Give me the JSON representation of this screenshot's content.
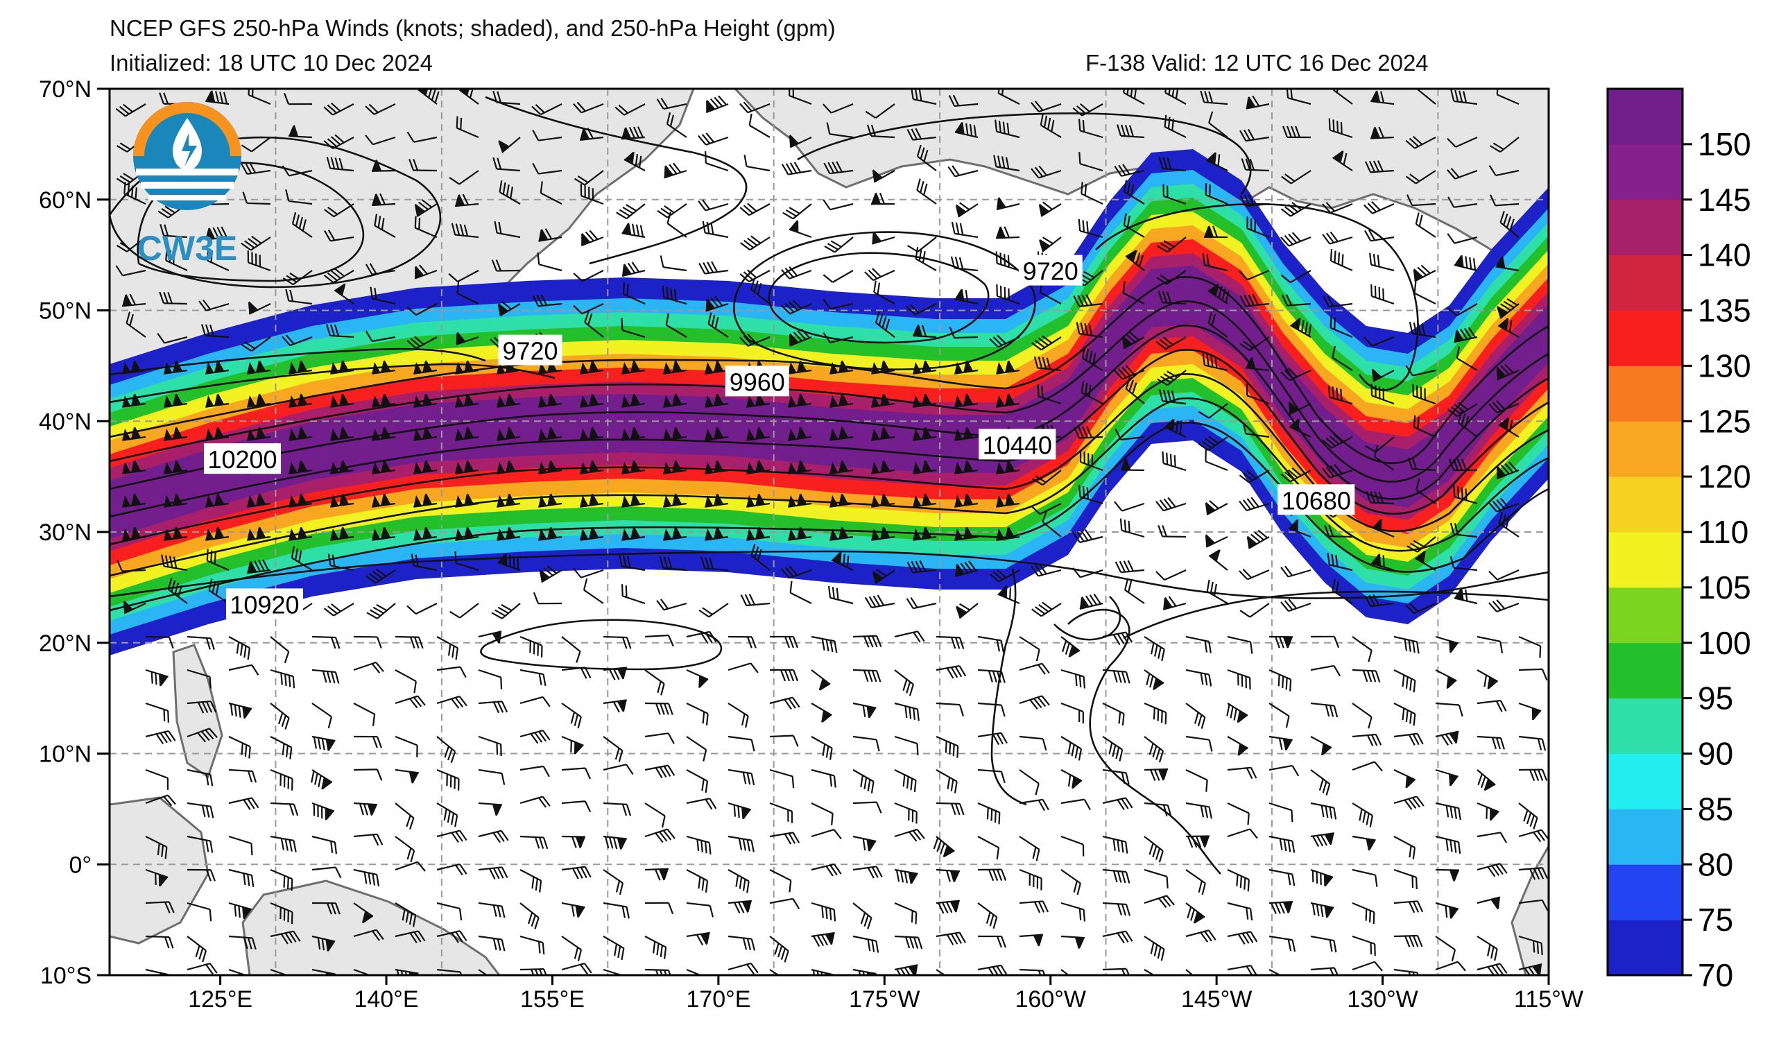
{
  "header": {
    "title": "NCEP GFS 250-hPa Winds (knots; shaded), and 250-hPa Height (gpm)",
    "initialized": "Initialized: 18 UTC 10 Dec 2024",
    "valid": "F-138  Valid: 12 UTC 16 Dec 2024"
  },
  "logo": {
    "text": "CW3E",
    "icon": "cw3e-logo-icon"
  },
  "map": {
    "lat_labels": [
      "70°N",
      "60°N",
      "50°N",
      "40°N",
      "30°N",
      "20°N",
      "10°N",
      "0°",
      "10°S"
    ],
    "lon_labels": [
      "125°E",
      "140°E",
      "155°E",
      "170°E",
      "175°W",
      "160°W",
      "145°W",
      "130°W",
      "115°W"
    ],
    "lat_range": [
      -10,
      70
    ],
    "lon_range": [
      115,
      245
    ],
    "land_color": "#e6e6e6",
    "coast_color": "#6e6e6e",
    "grid": "dashed"
  },
  "contour_labels": [
    {
      "text": "9720",
      "lon": 153,
      "lat": 46.3
    },
    {
      "text": "9720",
      "lon": 200,
      "lat": 53.5
    },
    {
      "text": "9960",
      "lon": 173.5,
      "lat": 43.5
    },
    {
      "text": "10200",
      "lon": 127,
      "lat": 36.5
    },
    {
      "text": "10440",
      "lon": 197,
      "lat": 37.8
    },
    {
      "text": "10680",
      "lon": 224,
      "lat": 32.8
    },
    {
      "text": "10920",
      "lon": 129,
      "lat": 23.4
    }
  ],
  "colorbar": {
    "ticks": [
      "150",
      "145",
      "140",
      "135",
      "130",
      "125",
      "120",
      "110",
      "105",
      "100",
      "95",
      "90",
      "85",
      "80",
      "75",
      "70"
    ],
    "colors": [
      "#1c22c8",
      "#2244f2",
      "#2ab5f5",
      "#22eef0",
      "#2ee0a8",
      "#24c02c",
      "#7cd420",
      "#f2f222",
      "#f8d020",
      "#f8a820",
      "#f87a20",
      "#f8201e",
      "#d02440",
      "#a8206a",
      "#86208c",
      "#721e8c"
    ]
  },
  "jet": {
    "colors": [
      "#1c22c8",
      "#2ab5f5",
      "#2ee0a8",
      "#24c02c",
      "#f2f222",
      "#f8a820",
      "#f8201e",
      "#a8206a",
      "#721e8c"
    ]
  }
}
